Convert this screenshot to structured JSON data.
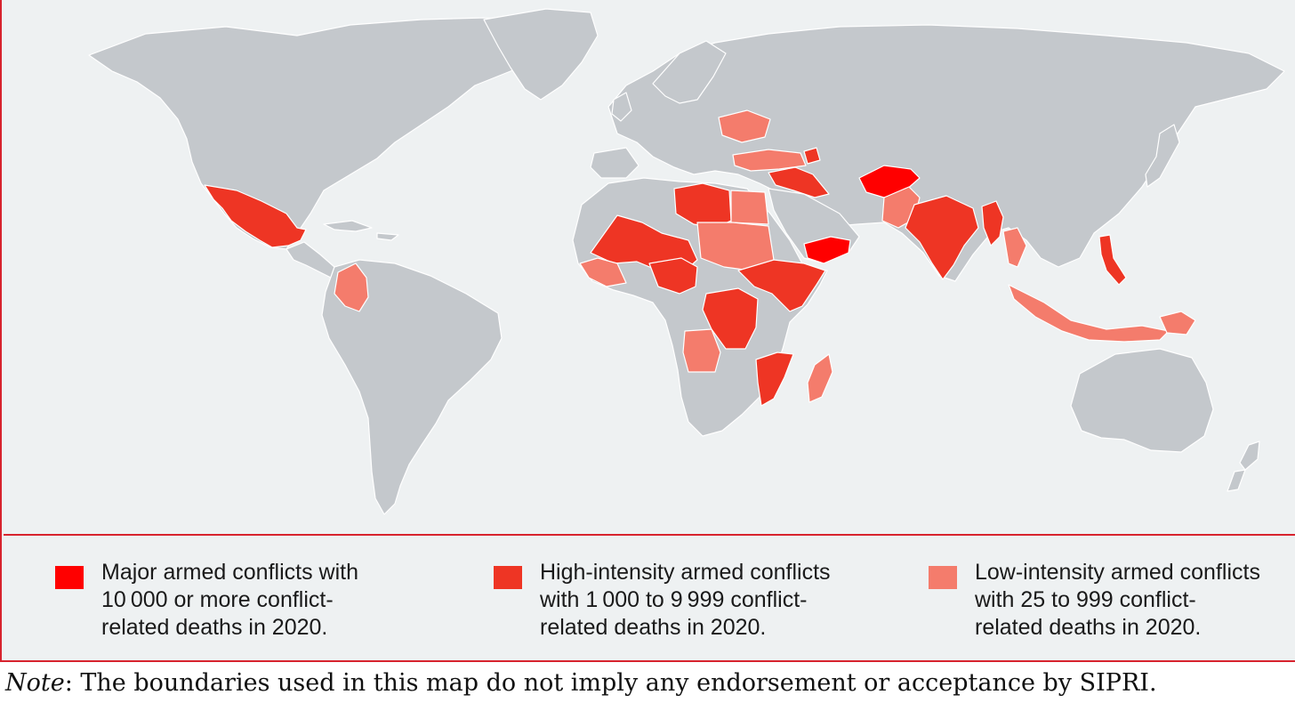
{
  "colors": {
    "frame_border": "#d7232e",
    "ocean": "#eef1f2",
    "land": "#c4c8cc",
    "major": "#ff0000",
    "high": "#ee3524",
    "low": "#f47c6c"
  },
  "legend": [
    {
      "category": "major",
      "color": "#ff0000",
      "lines": [
        "Major armed conflicts with",
        "10 000 or more conflict-",
        "related deaths in 2020."
      ]
    },
    {
      "category": "high",
      "color": "#ee3524",
      "lines": [
        "High-intensity armed conflicts",
        "with 1 000 to 9 999 conflict-",
        "related deaths in 2020."
      ]
    },
    {
      "category": "low",
      "color": "#f47c6c",
      "lines": [
        "Low-intensity armed conflicts",
        "with 25 to 999 conflict-",
        "related deaths in 2020."
      ]
    }
  ],
  "note": {
    "label": "Note",
    "text": ": The boundaries used in this map do not imply any endorsement or acceptance by SIPRI."
  }
}
